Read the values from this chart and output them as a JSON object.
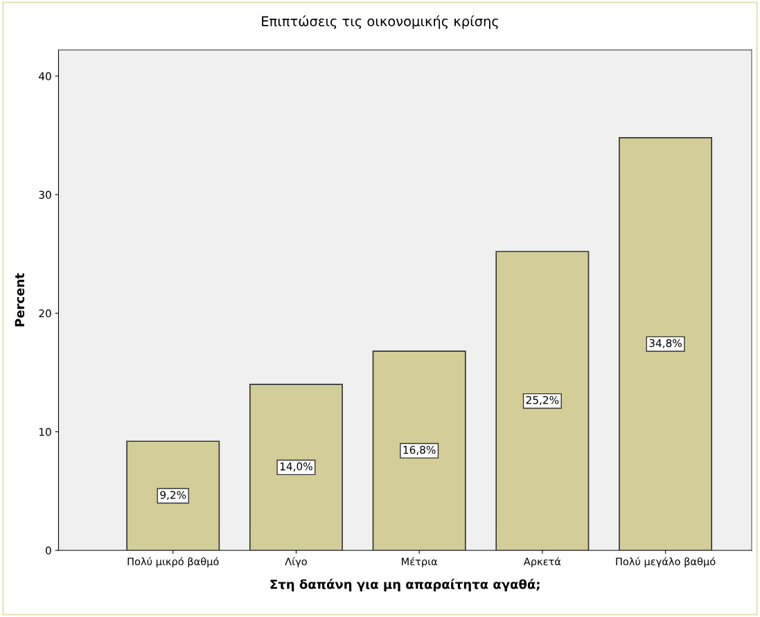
{
  "chart_data": {
    "type": "bar",
    "title": "Επιπτώσεις τις οικονομικής κρίσης",
    "xlabel": "Στη δαπάνη για μη απαραίτητα αγαθά;",
    "ylabel": "Percent",
    "categories": [
      "Πολύ μικρό βαθμό",
      "Λίγο",
      "Μέτρια",
      "Αρκετά",
      "Πολύ μεγάλο βαθμό"
    ],
    "values": [
      9.2,
      14.0,
      16.8,
      25.2,
      34.8
    ],
    "value_labels": [
      "9,2%",
      "14,0%",
      "16,8%",
      "25,2%",
      "34,8%"
    ],
    "color": "#d3ce97",
    "ylim": [
      0,
      42.2
    ],
    "yticks": [
      0,
      10,
      20,
      30,
      40
    ],
    "grid": false,
    "legend": false
  }
}
